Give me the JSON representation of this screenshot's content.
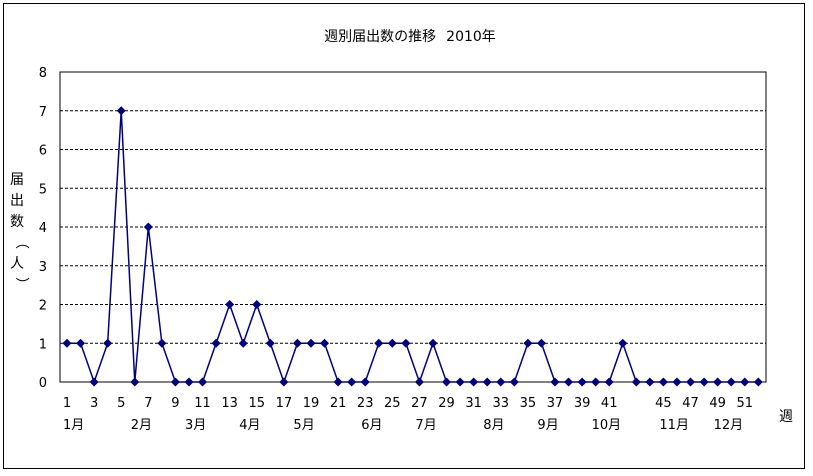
{
  "chart_data": {
    "type": "line",
    "title": "週別届出数の推移",
    "title_year": "2010年",
    "ylabel": "届出数（人）",
    "xlabel": "週",
    "ylim": [
      0,
      8
    ],
    "yticks": [
      0,
      1,
      2,
      3,
      4,
      5,
      6,
      7,
      8
    ],
    "grid": true,
    "x": [
      1,
      2,
      3,
      4,
      5,
      6,
      7,
      8,
      9,
      10,
      11,
      12,
      13,
      14,
      15,
      16,
      17,
      18,
      19,
      20,
      21,
      22,
      23,
      24,
      25,
      26,
      27,
      28,
      29,
      30,
      31,
      32,
      33,
      34,
      35,
      36,
      37,
      38,
      39,
      40,
      41,
      42,
      43,
      44,
      45,
      46,
      47,
      48,
      49,
      50,
      51,
      52
    ],
    "xtick_labels": [
      "1",
      "3",
      "5",
      "7",
      "9",
      "11",
      "13",
      "15",
      "17",
      "19",
      "21",
      "23",
      "25",
      "27",
      "29",
      "31",
      "33",
      "35",
      "37",
      "39",
      "41",
      "45",
      "47",
      "49",
      "51"
    ],
    "series": [
      {
        "values": [
          1,
          1,
          0,
          1,
          7,
          0,
          4,
          1,
          0,
          0,
          0,
          1,
          2,
          1,
          2,
          1,
          0,
          1,
          1,
          1,
          0,
          0,
          0,
          1,
          1,
          1,
          0,
          1,
          0,
          0,
          0,
          0,
          0,
          0,
          1,
          1,
          0,
          0,
          0,
          0,
          0,
          1,
          0,
          0,
          0,
          0,
          0,
          0,
          0,
          0,
          0,
          0
        ],
        "color": "#000080"
      }
    ],
    "month_labels": [
      {
        "label": "1月",
        "week": 1
      },
      {
        "label": "2月",
        "week": 6
      },
      {
        "label": "3月",
        "week": 10
      },
      {
        "label": "4月",
        "week": 14
      },
      {
        "label": "5月",
        "week": 18
      },
      {
        "label": "6月",
        "week": 23
      },
      {
        "label": "7月",
        "week": 27
      },
      {
        "label": "8月",
        "week": 32
      },
      {
        "label": "9月",
        "week": 36
      },
      {
        "label": "10月",
        "week": 40
      },
      {
        "label": "11月",
        "week": 45
      },
      {
        "label": "12月",
        "week": 49
      }
    ]
  }
}
